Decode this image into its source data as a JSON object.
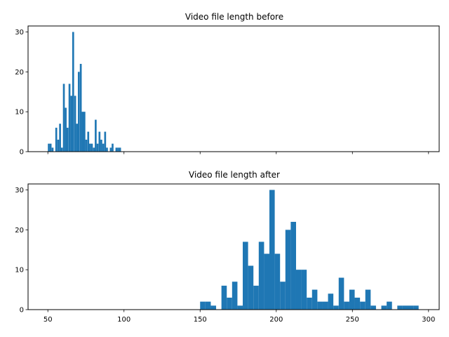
{
  "chart_data": [
    {
      "type": "bar",
      "title": "Video file length before",
      "xlabel": "",
      "ylabel": "",
      "xlim": [
        37,
        307
      ],
      "ylim": [
        0,
        31.5
      ],
      "xticks": [
        50,
        100,
        150,
        200,
        250,
        300
      ],
      "xtick_labels_visible": false,
      "yticks": [
        0,
        10,
        20,
        30
      ],
      "bar_color": "#1f77b4",
      "bin_width": 1.23,
      "x": [
        50.0,
        51.2,
        52.5,
        53.7,
        54.9,
        56.2,
        57.4,
        58.6,
        59.9,
        61.1,
        62.3,
        63.6,
        64.8,
        66.0,
        67.3,
        68.5,
        69.7,
        71.0,
        72.2,
        73.4,
        74.6,
        75.9,
        77.1,
        78.3,
        79.6,
        80.8,
        82.0,
        83.3,
        84.5,
        85.7,
        87.0,
        88.2,
        89.4,
        90.7,
        91.9,
        93.1,
        94.4,
        95.6,
        96.8,
        98.1
      ],
      "values": [
        2,
        2,
        1,
        0,
        6,
        3,
        7,
        1,
        17,
        11,
        6,
        17,
        14,
        30,
        14,
        7,
        20,
        22,
        10,
        10,
        3,
        5,
        2,
        2,
        1,
        8,
        2,
        5,
        3,
        2,
        5,
        1,
        0,
        1,
        2,
        0,
        1,
        1,
        1,
        0
      ]
    },
    {
      "type": "bar",
      "title": "Video file length after",
      "xlabel": "",
      "ylabel": "",
      "xlim": [
        37,
        307
      ],
      "ylim": [
        0,
        31.5
      ],
      "xticks": [
        50,
        100,
        150,
        200,
        250,
        300
      ],
      "xtick_labels_visible": true,
      "yticks": [
        0,
        10,
        20,
        30
      ],
      "bar_color": "#1f77b4",
      "bin_width": 3.5,
      "x": [
        150.0,
        153.5,
        157.0,
        160.5,
        164.0,
        167.5,
        171.0,
        174.5,
        178.0,
        181.5,
        185.0,
        188.5,
        192.0,
        195.5,
        199.0,
        202.5,
        206.0,
        209.5,
        213.0,
        216.5,
        220.0,
        223.5,
        227.0,
        230.5,
        234.0,
        237.5,
        241.0,
        244.5,
        248.0,
        251.5,
        255.0,
        258.5,
        262.0,
        265.5,
        269.0,
        272.5,
        276.0,
        279.5,
        283.0,
        286.5,
        290.0,
        293.5
      ],
      "values": [
        2,
        2,
        1,
        0,
        6,
        3,
        7,
        1,
        17,
        11,
        6,
        17,
        14,
        30,
        14,
        7,
        20,
        22,
        10,
        10,
        3,
        5,
        2,
        2,
        4,
        1,
        8,
        2,
        5,
        3,
        2,
        5,
        1,
        0,
        1,
        2,
        0,
        1,
        1,
        1,
        1,
        0
      ]
    }
  ]
}
